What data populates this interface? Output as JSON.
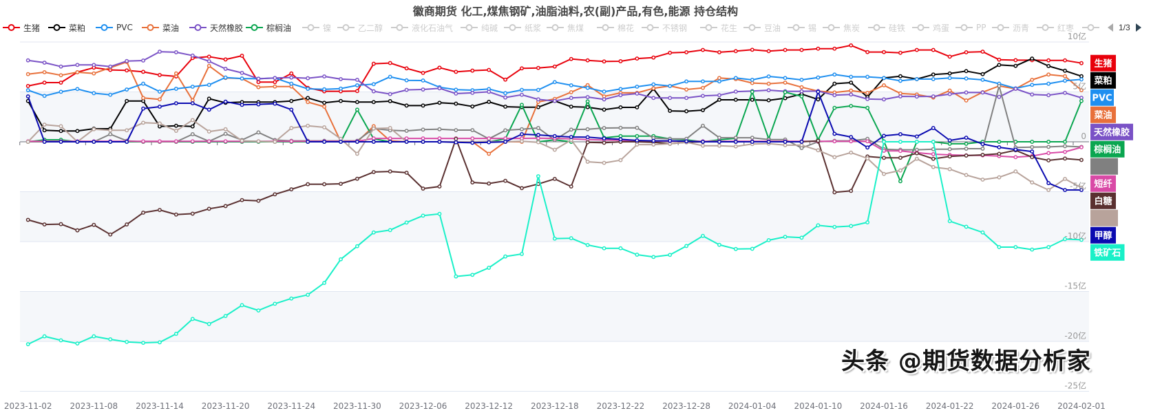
{
  "title": "徽商期货 化工,煤焦钢矿,油脂油料,农(副)产品,有色,能源 持仓结构",
  "legend": {
    "items": [
      {
        "name": "生猪",
        "active": true,
        "color": "#e8000b"
      },
      {
        "name": "菜粕",
        "active": true,
        "color": "#000000"
      },
      {
        "name": "PVC",
        "active": true,
        "color": "#1e8ff0"
      },
      {
        "name": "菜油",
        "active": true,
        "color": "#e8703a"
      },
      {
        "name": "天然橡胶",
        "active": true,
        "color": "#7a52c6"
      },
      {
        "name": "棕榈油",
        "active": true,
        "color": "#0aa650"
      },
      {
        "name": "镍",
        "active": false,
        "color": "#cccccc"
      },
      {
        "name": "乙二醇",
        "active": false,
        "color": "#cccccc"
      },
      {
        "name": "液化石油气",
        "active": false,
        "color": "#cccccc"
      },
      {
        "name": "纯碱",
        "active": false,
        "color": "#cccccc"
      },
      {
        "name": "纸浆",
        "active": false,
        "color": "#cccccc"
      },
      {
        "name": "焦煤",
        "active": false,
        "color": "#cccccc"
      },
      {
        "name": "棉花",
        "active": false,
        "color": "#cccccc"
      },
      {
        "name": "不锈钢",
        "active": false,
        "color": "#cccccc"
      },
      {
        "name": "花生",
        "active": false,
        "color": "#cccccc"
      },
      {
        "name": "豆油",
        "active": false,
        "color": "#cccccc"
      },
      {
        "name": "锡",
        "active": false,
        "color": "#cccccc"
      },
      {
        "name": "焦炭",
        "active": false,
        "color": "#cccccc"
      },
      {
        "name": "硅铁",
        "active": false,
        "color": "#cccccc"
      },
      {
        "name": "鸡蛋",
        "active": false,
        "color": "#cccccc"
      },
      {
        "name": "PP",
        "active": false,
        "color": "#cccccc"
      },
      {
        "name": "沥青",
        "active": false,
        "color": "#cccccc"
      },
      {
        "name": "红枣",
        "active": false,
        "color": "#cccccc"
      },
      {
        "name": "",
        "active": false,
        "color": "#cccccc"
      }
    ],
    "page": "1/3"
  },
  "chart_data": {
    "type": "line",
    "title": "徽商期货 化工,煤焦钢矿,油脂油料,农(副)产品,有色,能源 持仓结构",
    "xlabel": "",
    "ylabel": "",
    "ylim": [
      -25,
      10
    ],
    "y_ticks": [
      {
        "value": 10,
        "label": "10亿"
      },
      {
        "value": 5,
        "label": "5亿"
      },
      {
        "value": 0,
        "label": "0"
      },
      {
        "value": -5,
        "label": "-5亿"
      },
      {
        "value": -10,
        "label": "-10亿"
      },
      {
        "value": -15,
        "label": "-15亿"
      },
      {
        "value": -20,
        "label": "-20亿"
      },
      {
        "value": -25,
        "label": "-25亿"
      }
    ],
    "n_points": 65,
    "x_tick_every": 4,
    "x_tick_labels": [
      "2023-11-02",
      "2023-11-08",
      "2023-11-14",
      "2023-11-20",
      "2023-11-24",
      "2023-11-30",
      "2023-12-06",
      "2023-12-12",
      "2023-12-18",
      "2023-12-22",
      "2023-12-28",
      "2024-01-04",
      "2024-01-10",
      "2024-01-16",
      "2024-01-22",
      "2024-01-26",
      "2024-02-01"
    ],
    "grid": true,
    "series": [
      {
        "name": "生猪",
        "color": "#e8000b",
        "values": [
          5.59,
          5.93,
          5.93,
          6.97,
          7.43,
          7.2,
          7.15,
          7.01,
          6.69,
          6.55,
          8.39,
          8.53,
          8.25,
          8.62,
          5.98,
          5.98,
          6.85,
          5.4,
          5.06,
          5.06,
          5.08,
          7.82,
          7.89,
          7.36,
          6.9,
          7.43,
          7.01,
          7.13,
          7.2,
          6.23,
          7.36,
          7.4,
          7.54,
          8.3,
          8.16,
          8.05,
          8.07,
          8.34,
          8.44,
          8.92,
          8.97,
          9.2,
          8.97,
          9.08,
          9.22,
          9.08,
          9.2,
          9.2,
          9.33,
          9.33,
          9.66,
          8.99,
          8.99,
          8.92,
          9.2,
          9.2,
          8.53,
          8.97,
          9.03,
          8.23,
          8.18,
          8.18,
          8.16,
          8.16,
          7.88
        ]
      },
      {
        "name": "菜粕",
        "color": "#000000",
        "values": [
          4.09,
          1.15,
          1.08,
          1.08,
          1.31,
          1.31,
          4.09,
          4.09,
          1.54,
          1.61,
          1.54,
          4.32,
          3.91,
          3.98,
          3.98,
          3.98,
          4.09,
          4.39,
          3.91,
          4.09,
          3.98,
          3.98,
          4.07,
          3.63,
          3.63,
          3.91,
          3.82,
          3.54,
          4.0,
          3.52,
          3.47,
          3.47,
          4.09,
          3.52,
          3.47,
          3.22,
          3.45,
          3.45,
          5.31,
          3.1,
          3.06,
          3.17,
          4.21,
          4.21,
          4.21,
          4.16,
          4.37,
          4.78,
          4.25,
          5.82,
          5.93,
          4.48,
          6.39,
          6.57,
          6.28,
          6.74,
          6.85,
          7.08,
          6.78,
          7.7,
          7.61,
          8.34,
          7.59,
          7.12,
          6.57
        ]
      },
      {
        "name": "菜油",
        "color": "#e8703a",
        "values": [
          6.78,
          6.97,
          6.67,
          6.97,
          6.85,
          7.43,
          8.0,
          4.39,
          4.25,
          6.85,
          4.16,
          7.61,
          6.39,
          6.34,
          5.47,
          5.54,
          5.54,
          3.98,
          3.52,
          0.02,
          0,
          1.56,
          0.1,
          0,
          0,
          0,
          0,
          0,
          -1.2,
          0,
          0,
          4.0,
          4.3,
          4.97,
          5.68,
          4.55,
          4.9,
          4.9,
          5.36,
          5.59,
          5.24,
          5.4,
          6.39,
          6.28,
          5.89,
          5.82,
          5.93,
          5.47,
          5.08,
          4.94,
          5.13,
          4.9,
          5.66,
          4.85,
          4.74,
          4.44,
          5.13,
          4.14,
          4.97,
          5.59,
          5.31,
          6.21,
          6.74,
          6.57,
          5.17
        ]
      },
      {
        "name": "PVC",
        "color": "#1e8ff0",
        "values": [
          5.17,
          4.6,
          5.01,
          5.29,
          4.87,
          4.71,
          5.24,
          5.82,
          5.03,
          5.31,
          5.52,
          5.7,
          6.44,
          6.34,
          6.32,
          6.39,
          5.82,
          5.31,
          5.26,
          5.33,
          5.66,
          5.77,
          6.51,
          6.16,
          6.14,
          5.47,
          5.22,
          5.17,
          5.29,
          4.87,
          5.2,
          5.2,
          5.98,
          5.66,
          5.4,
          5.03,
          5.29,
          5.52,
          5.75,
          5.59,
          6.05,
          6.05,
          6.05,
          6.39,
          6.21,
          6.55,
          6.39,
          6.21,
          6.44,
          6.74,
          6.51,
          6.51,
          6.39,
          6.11,
          6.28,
          6.28,
          6.39,
          6.34,
          6.21,
          5.82,
          5.36,
          5.7,
          5.82,
          6.12,
          6.25
        ]
      },
      {
        "name": "天然橡胶",
        "color": "#7a52c6",
        "values": [
          8.16,
          7.93,
          7.54,
          7.7,
          7.7,
          7.54,
          8.09,
          8.14,
          9.03,
          8.97,
          8.64,
          8.07,
          7.31,
          6.9,
          6.32,
          6.39,
          6.44,
          6.37,
          6.55,
          6.28,
          6.21,
          5.06,
          4.78,
          5.2,
          5.24,
          5.36,
          4.83,
          4.9,
          5.01,
          4.44,
          4.71,
          4.25,
          4.09,
          4.39,
          4.48,
          4.25,
          4.67,
          4.83,
          4.39,
          4.39,
          4.39,
          4.6,
          4.67,
          5.03,
          5.08,
          5.17,
          5.06,
          5.06,
          5.08,
          4.67,
          4.74,
          4.28,
          4.25,
          4.55,
          4.53,
          4.55,
          4.78,
          4.94,
          4.94,
          4.5,
          5.31,
          4.74,
          4.67,
          4.9,
          4.41
        ]
      },
      {
        "name": "棕榈油",
        "color": "#0aa650",
        "values": [
          0,
          0.2,
          0.2,
          0,
          0,
          0,
          0,
          0,
          0,
          0,
          0,
          0,
          0,
          0,
          0,
          0,
          0,
          0,
          0,
          0,
          3.22,
          0.3,
          0,
          0,
          0,
          0,
          0,
          0,
          0,
          0.3,
          3.7,
          0,
          0.2,
          0,
          4.05,
          0.4,
          0.57,
          0.57,
          0.57,
          0.3,
          0.2,
          0,
          0.2,
          0.35,
          5.01,
          0.3,
          4.97,
          4.55,
          0.2,
          3.4,
          3.59,
          3.4,
          0.05,
          -3.95,
          0,
          0,
          -0.2,
          -0.2,
          0,
          0,
          0,
          0,
          0,
          0,
          4.09
        ]
      },
      {
        "name": "",
        "color": "#808080",
        "values": [
          0,
          0,
          0,
          0,
          0,
          0.76,
          0.1,
          0,
          0,
          0,
          0.76,
          0.05,
          0.8,
          0.18,
          0.94,
          0.18,
          0.1,
          0.1,
          0.1,
          0.1,
          0.1,
          1.33,
          1.15,
          1.1,
          1.22,
          1.26,
          1.17,
          1.17,
          0.3,
          1.15,
          1.26,
          1.38,
          0.18,
          1.22,
          1.26,
          1.38,
          1.4,
          1.4,
          0.37,
          0.3,
          0.3,
          1.61,
          0.41,
          0.41,
          0.41,
          0.23,
          0.23,
          -0.62,
          0,
          0.1,
          0.1,
          0.3,
          -0.74,
          -0.8,
          -0.8,
          -0.74,
          -0.74,
          -0.69,
          -0.69,
          5.59,
          -0.57,
          -0.53,
          -0.51,
          -0.44,
          -0.51
        ]
      },
      {
        "name": "短纤",
        "color": "#d94aa6",
        "values": [
          0.05,
          0.05,
          0.05,
          0.05,
          0.05,
          0.05,
          0.05,
          0.05,
          0.05,
          0.05,
          0.05,
          0.05,
          0.05,
          0.05,
          0.05,
          0.05,
          0.05,
          0.05,
          0.05,
          0.05,
          0.05,
          0.34,
          0.34,
          0.34,
          0.34,
          0.34,
          0.34,
          0.34,
          0.34,
          0.34,
          0.34,
          0.36,
          0.34,
          0.3,
          0.23,
          0.18,
          0.15,
          0.1,
          0.08,
          0.06,
          0.05,
          0.05,
          0.05,
          0.05,
          0.05,
          0.05,
          0.05,
          0.05,
          0.05,
          0.05,
          0.05,
          0.05,
          -0.9,
          -0.92,
          -1.08,
          -1.24,
          -1.31,
          -1.36,
          -1.36,
          -1.43,
          -1.54,
          -1.43,
          -1.13,
          -1.01,
          -0.55
        ]
      },
      {
        "name": "白糖",
        "color": "#5a3030",
        "values": [
          -7.82,
          -8.28,
          -8.25,
          -8.87,
          -8.32,
          -9.29,
          -8.28,
          -7.1,
          -6.83,
          -7.29,
          -7.2,
          -6.71,
          -6.44,
          -5.84,
          -5.91,
          -5.26,
          -4.76,
          -4.25,
          -4.25,
          -4.21,
          -3.7,
          -3.03,
          -2.97,
          -3.1,
          -4.69,
          -4.48,
          0.3,
          -4.07,
          -4.18,
          -3.91,
          -4.64,
          -4.23,
          -3.72,
          -4.48,
          -0.05,
          -0.1,
          0,
          0,
          -0.05,
          -0.2,
          -0.05,
          0,
          0,
          0,
          0,
          0,
          0,
          0,
          0.1,
          -5.06,
          -4.92,
          -1.47,
          -1.61,
          -1.6,
          -1.15,
          -1.7,
          -1.47,
          -1.38,
          -1.31,
          -1.2,
          -0.85,
          -1.54,
          -1.86,
          -1.68,
          -1.82
        ]
      },
      {
        "name": "",
        "color": "#b8a39b",
        "values": [
          0,
          1.72,
          1.56,
          0,
          1.26,
          1.15,
          1.15,
          1.91,
          1.84,
          1.1,
          2.18,
          1.03,
          1.26,
          0.1,
          0.05,
          0,
          1.38,
          1.61,
          1.45,
          0.3,
          -1.2,
          1.33,
          1.38,
          0,
          0,
          0,
          0,
          0,
          0.05,
          0,
          0.05,
          -0.05,
          -0.8,
          0.18,
          -2.0,
          -2.11,
          -1.84,
          -0.28,
          -0.28,
          -0.2,
          -0.05,
          -0.39,
          -0.39,
          -0.46,
          -0.23,
          -0.18,
          -0.34,
          -0.34,
          -0.85,
          -1.54,
          -1.08,
          -1.66,
          -3.22,
          -2.87,
          -1.7,
          -2.53,
          -2.74,
          -3.33,
          -3.79,
          -3.56,
          -2.97,
          -4.07,
          -4.83,
          -3.72,
          -4.6
        ]
      },
      {
        "name": "甲醇",
        "color": "#0a0ab0",
        "values": [
          4.55,
          0,
          0,
          0,
          0,
          0,
          0,
          3.33,
          3.52,
          3.86,
          3.86,
          3.22,
          4.02,
          3.7,
          3.75,
          3.82,
          3.22,
          0,
          0,
          0,
          0,
          0,
          0,
          0,
          0,
          0,
          -0.05,
          -0.1,
          -0.05,
          0,
          0.76,
          0.69,
          0.57,
          0.48,
          0.46,
          0.34,
          0.25,
          0.14,
          0.1,
          0.1,
          0.05,
          0,
          0,
          0,
          0,
          0,
          0,
          0,
          5.01,
          0.8,
          0.48,
          -0.57,
          0.6,
          0.76,
          0.53,
          1.38,
          0.14,
          0.41,
          -0.23,
          -0.55,
          -0.78,
          -0.97,
          -4.14,
          -4.83,
          -4.83
        ]
      },
      {
        "name": "铁矿石",
        "color": "#19f0c8",
        "values": [
          -20.28,
          -19.49,
          -19.89,
          -20.21,
          -19.49,
          -19.79,
          -20.05,
          -20.14,
          -20.09,
          -19.24,
          -17.75,
          -18.25,
          -17.45,
          -16.37,
          -16.9,
          -16.23,
          -15.7,
          -15.33,
          -14.14,
          -11.77,
          -10.46,
          -9.08,
          -8.85,
          -8.09,
          -7.4,
          -7.22,
          -13.49,
          -13.33,
          -12.62,
          -11.49,
          -11.24,
          -3.45,
          -9.7,
          -9.66,
          -10.34,
          -10.67,
          -10.67,
          -11.31,
          -11.54,
          -11.33,
          -10.44,
          -9.43,
          -10.32,
          -10.74,
          -10.72,
          -9.86,
          -9.52,
          -9.61,
          -8.37,
          -8.53,
          -8.44,
          -8.07,
          0,
          0,
          0,
          0,
          -7.95,
          -8.51,
          -9.08,
          -10.55,
          -10.55,
          -10.8,
          -10.55,
          -9.75,
          -9.82
        ]
      }
    ]
  },
  "watermark": "头条 @期货数据分析家"
}
